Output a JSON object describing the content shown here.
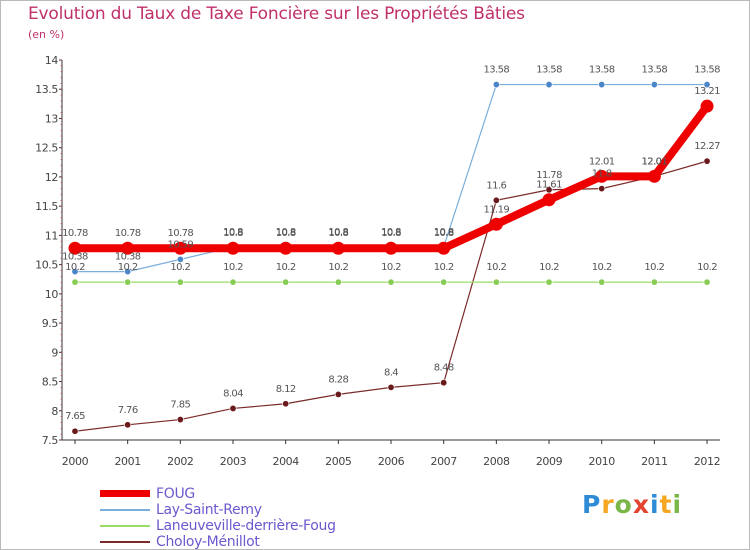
{
  "title": "Evolution du Taux de Taxe Foncière sur les Propriétés Bâties",
  "unit": "(en %)",
  "logo": {
    "letters": [
      "P",
      "r",
      "o",
      "x",
      "i",
      "t",
      "i"
    ],
    "colors": [
      "#2e8bd6",
      "#f5a623",
      "#7ab648",
      "#e2442f",
      "#2e8bd6",
      "#f5a623",
      "#7ab648"
    ]
  },
  "chart_data": {
    "type": "line",
    "title": "Evolution du Taux de Taxe Foncière sur les Propriétés Bâties",
    "ylabel": "(en %)",
    "xlabel": "",
    "ylim": [
      7.5,
      14
    ],
    "y_ticks": [
      "7.5",
      "8",
      "8.5",
      "9",
      "9.5",
      "10",
      "10.5",
      "11",
      "11.5",
      "12",
      "12.5",
      "13",
      "13.5",
      "14"
    ],
    "categories": [
      "2000",
      "2001",
      "2002",
      "2003",
      "2004",
      "2005",
      "2006",
      "2007",
      "2008",
      "2009",
      "2010",
      "2011",
      "2012"
    ],
    "grid": false,
    "legend_position": "bottom-left",
    "series": [
      {
        "name": "FOUG",
        "color": "#ee0000",
        "emphasis": true,
        "values": [
          10.78,
          10.78,
          10.78,
          10.78,
          10.78,
          10.78,
          10.78,
          10.78,
          11.19,
          11.61,
          12.01,
          12.01,
          13.21
        ],
        "labels": [
          "10.78",
          "10.78",
          "10.78",
          "10.8",
          "10.8",
          "10.8",
          "10.8",
          "10.8",
          "11.19",
          "11.61",
          "12.01",
          "12.01",
          "13.21"
        ]
      },
      {
        "name": "Lay-Saint-Remy",
        "color": "#7aaedc",
        "marker": "#4a86c8",
        "values": [
          10.38,
          10.38,
          10.59,
          10.8,
          10.8,
          10.8,
          10.8,
          10.8,
          13.58,
          13.58,
          13.58,
          13.58,
          13.58
        ],
        "labels": [
          "10.38",
          "10.38",
          "10.59",
          "10.8",
          "10.8",
          "10.8",
          "10.8",
          "10.8",
          "13.58",
          "13.58",
          "13.58",
          "13.58",
          "13.58"
        ]
      },
      {
        "name": "Laneuveville-derrière-Foug",
        "color": "#99dd66",
        "marker": "#88cc55",
        "values": [
          10.2,
          10.2,
          10.2,
          10.2,
          10.2,
          10.2,
          10.2,
          10.2,
          10.2,
          10.2,
          10.2,
          10.2,
          10.2
        ],
        "labels": [
          "10.2",
          "10.2",
          "10.2",
          "10.2",
          "10.2",
          "10.2",
          "10.2",
          "10.2",
          "10.2",
          "10.2",
          "10.2",
          "10.2",
          "10.2"
        ]
      },
      {
        "name": "Choloy-Ménillot",
        "color": "#7a2a2a",
        "marker": "#6a1a1a",
        "values": [
          7.65,
          7.76,
          7.85,
          8.04,
          8.12,
          8.28,
          8.4,
          8.48,
          11.6,
          11.78,
          11.8,
          12.01,
          12.27
        ],
        "labels": [
          "7.65",
          "7.76",
          "7.85",
          "8.04",
          "8.12",
          "8.28",
          "8.4",
          "8.48",
          "11.6",
          "11.78",
          "11.8",
          "12.01",
          "12.27"
        ]
      }
    ]
  }
}
